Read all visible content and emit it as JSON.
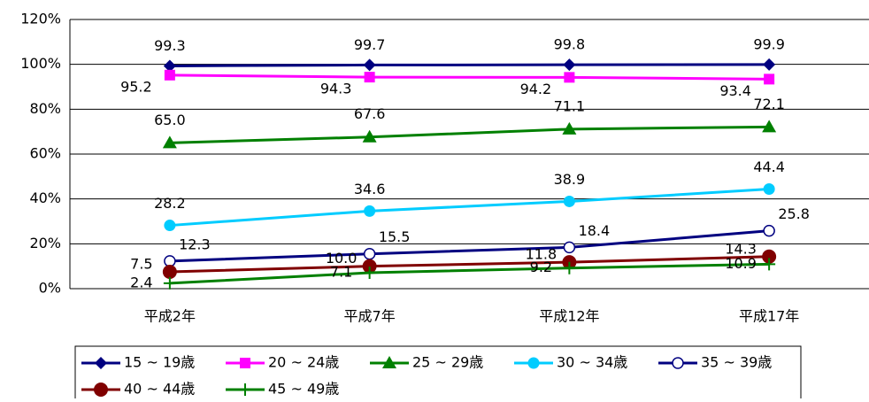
{
  "chart_data": {
    "type": "line",
    "categories": [
      "平成2年",
      "平成7年",
      "平成12年",
      "平成17年"
    ],
    "series": [
      {
        "name": "15 ~ 19歳",
        "color": "#000080",
        "marker": "diamond",
        "values": [
          99.3,
          99.7,
          99.8,
          99.9
        ],
        "value_labels": [
          "99.3",
          "99.7",
          "99.8",
          "99.9"
        ]
      },
      {
        "name": "20 ~ 24歳",
        "color": "#ff00ff",
        "marker": "square",
        "values": [
          95.2,
          94.3,
          94.2,
          93.4
        ],
        "value_labels": [
          "95.2",
          "94.3",
          "94.2",
          "93.4"
        ]
      },
      {
        "name": "25 ~ 29歳",
        "color": "#008000",
        "marker": "triangle",
        "values": [
          65.0,
          67.6,
          71.1,
          72.1
        ],
        "value_labels": [
          "65.0",
          "67.6",
          "71.1",
          "72.1"
        ]
      },
      {
        "name": "30 ~ 34歳",
        "color": "#00ccff",
        "marker": "circle",
        "values": [
          28.2,
          34.6,
          38.9,
          44.4
        ],
        "value_labels": [
          "28.2",
          "34.6",
          "38.9",
          "44.4"
        ]
      },
      {
        "name": "35 ~ 39歳",
        "color": "#000080",
        "marker": "open-circle",
        "values": [
          12.3,
          15.5,
          18.4,
          25.8
        ],
        "value_labels": [
          "12.3",
          "15.5",
          "18.4",
          "25.8"
        ]
      },
      {
        "name": "40 ~ 44歳",
        "color": "#800000",
        "marker": "big-circle",
        "values": [
          7.5,
          10.0,
          11.8,
          14.3
        ],
        "value_labels": [
          "7.5",
          "10.0",
          "11.8",
          "14.3"
        ]
      },
      {
        "name": "45 ~ 49歳",
        "color": "#008000",
        "marker": "plus",
        "values": [
          2.4,
          7.1,
          9.2,
          10.9
        ],
        "value_labels": [
          "2.4",
          "7.1",
          "9.2",
          "10.9"
        ]
      }
    ],
    "ylim": [
      0,
      120
    ],
    "yticks": [
      {
        "value": 0,
        "label": "0%"
      },
      {
        "value": 20,
        "label": "20%"
      },
      {
        "value": 40,
        "label": "40%"
      },
      {
        "value": 60,
        "label": "60%"
      },
      {
        "value": 80,
        "label": "80%"
      },
      {
        "value": 100,
        "label": "100%"
      },
      {
        "value": 120,
        "label": "120%"
      }
    ],
    "grid": true,
    "legend": "bottom"
  }
}
